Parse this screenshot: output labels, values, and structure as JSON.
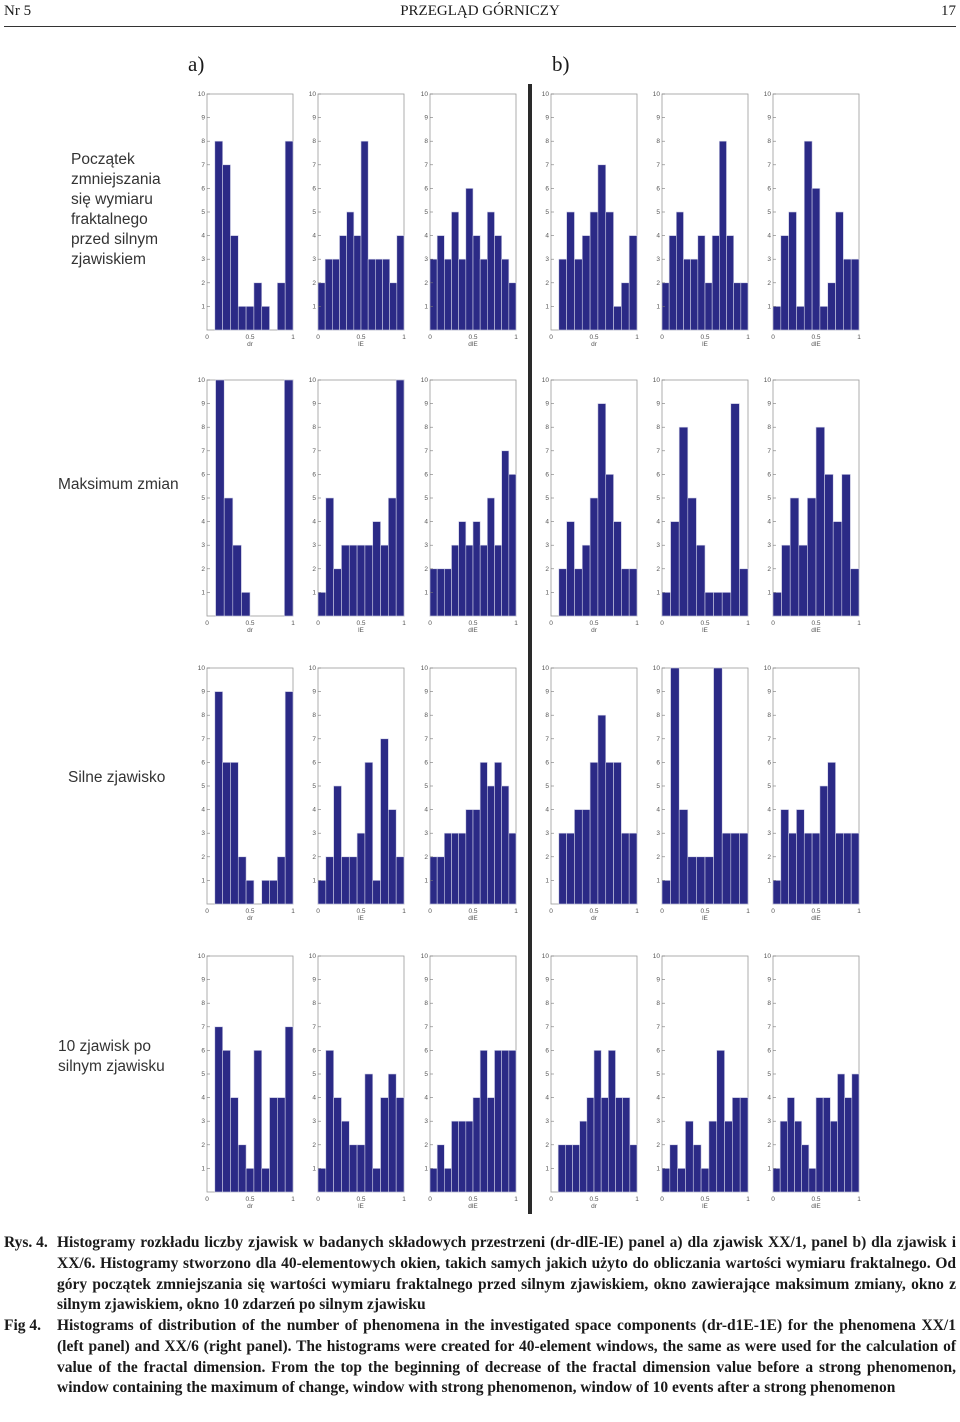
{
  "header": {
    "left": "Nr 5",
    "center": "PRZEGLĄD GÓRNICZY",
    "right": "17"
  },
  "panels": {
    "a": "a)",
    "b": "b)"
  },
  "row_labels": [
    [
      "Początek",
      "zmniejszania",
      "się wymiaru",
      "fraktalnego",
      "przed silnym",
      "zjawiskiem"
    ],
    [
      "Maksimum zmian"
    ],
    [
      "Silne zjawisko"
    ],
    [
      "10 zjawisk po",
      "silnym zjawisku"
    ]
  ],
  "chart_data": {
    "type": "bar",
    "y_ticks": [
      "1",
      "2",
      "3",
      "4",
      "5",
      "6",
      "7",
      "8",
      "9",
      "10"
    ],
    "x_ticks": [
      "0",
      "0.5",
      "1"
    ],
    "x_labels": [
      "dr",
      "lE",
      "dlE",
      "dr",
      "lE",
      "dlE"
    ],
    "bar_color": "#2b2a86",
    "ylim": [
      0,
      10
    ],
    "panels": [
      {
        "panel": "a",
        "row": 1,
        "xlabel": "dr",
        "values": [
          0,
          8,
          7,
          4,
          1,
          1,
          2,
          1,
          0,
          2,
          8
        ]
      },
      {
        "panel": "a",
        "row": 1,
        "xlabel": "lE",
        "values": [
          2,
          3,
          3,
          4,
          5,
          4,
          8,
          3,
          3,
          3,
          2,
          4
        ]
      },
      {
        "panel": "a",
        "row": 1,
        "xlabel": "dlE",
        "values": [
          3,
          4,
          3,
          5,
          3,
          6,
          4,
          3,
          5,
          4,
          3,
          2
        ]
      },
      {
        "panel": "b",
        "row": 1,
        "xlabel": "dr",
        "values": [
          0,
          3,
          5,
          3,
          4,
          5,
          7,
          5,
          1,
          2,
          4
        ]
      },
      {
        "panel": "b",
        "row": 1,
        "xlabel": "lE",
        "values": [
          2,
          4,
          5,
          3,
          3,
          4,
          2,
          4,
          8,
          4,
          2,
          2
        ]
      },
      {
        "panel": "b",
        "row": 1,
        "xlabel": "dlE",
        "values": [
          1,
          4,
          5,
          1,
          8,
          6,
          1,
          2,
          5,
          3,
          3
        ]
      },
      {
        "panel": "a",
        "row": 2,
        "xlabel": "dr",
        "values": [
          0,
          10,
          5,
          3,
          1,
          0,
          0,
          0,
          0,
          10
        ]
      },
      {
        "panel": "a",
        "row": 2,
        "xlabel": "lE",
        "values": [
          1,
          5,
          2,
          3,
          3,
          3,
          3,
          4,
          3,
          5,
          10
        ]
      },
      {
        "panel": "a",
        "row": 2,
        "xlabel": "dlE",
        "values": [
          2,
          2,
          2,
          3,
          4,
          3,
          4,
          3,
          5,
          3,
          7,
          6
        ]
      },
      {
        "panel": "b",
        "row": 2,
        "xlabel": "dr",
        "values": [
          0,
          2,
          4,
          2,
          3,
          5,
          9,
          6,
          4,
          2,
          2
        ]
      },
      {
        "panel": "b",
        "row": 2,
        "xlabel": "lE",
        "values": [
          1,
          4,
          8,
          5,
          3,
          1,
          1,
          1,
          9,
          2
        ]
      },
      {
        "panel": "b",
        "row": 2,
        "xlabel": "dlE",
        "values": [
          1,
          3,
          5,
          3,
          5,
          8,
          6,
          4,
          6,
          2
        ]
      },
      {
        "panel": "a",
        "row": 3,
        "xlabel": "dr",
        "values": [
          0,
          9,
          6,
          6,
          2,
          1,
          0,
          1,
          1,
          2,
          9
        ]
      },
      {
        "panel": "a",
        "row": 3,
        "xlabel": "lE",
        "values": [
          1,
          2,
          5,
          2,
          2,
          3,
          6,
          1,
          7,
          4,
          2
        ]
      },
      {
        "panel": "a",
        "row": 3,
        "xlabel": "dlE",
        "values": [
          2,
          2,
          3,
          3,
          3,
          4,
          4,
          6,
          5,
          6,
          5,
          3
        ]
      },
      {
        "panel": "b",
        "row": 3,
        "xlabel": "dr",
        "values": [
          0,
          3,
          3,
          4,
          4,
          6,
          8,
          6,
          6,
          3,
          3
        ]
      },
      {
        "panel": "b",
        "row": 3,
        "xlabel": "lE",
        "values": [
          1,
          10,
          4,
          2,
          2,
          2,
          10,
          3,
          3,
          3
        ]
      },
      {
        "panel": "b",
        "row": 3,
        "xlabel": "dlE",
        "values": [
          1,
          4,
          3,
          4,
          3,
          3,
          5,
          6,
          3,
          3,
          3
        ]
      },
      {
        "panel": "a",
        "row": 4,
        "xlabel": "dr",
        "values": [
          0,
          7,
          6,
          4,
          2,
          1,
          6,
          1,
          4,
          4,
          7
        ]
      },
      {
        "panel": "a",
        "row": 4,
        "xlabel": "lE",
        "values": [
          1,
          6,
          4,
          3,
          2,
          2,
          5,
          1,
          4,
          5,
          4
        ]
      },
      {
        "panel": "a",
        "row": 4,
        "xlabel": "dlE",
        "values": [
          1,
          2,
          1,
          3,
          3,
          3,
          4,
          6,
          4,
          6,
          6,
          6
        ]
      },
      {
        "panel": "b",
        "row": 4,
        "xlabel": "dr",
        "values": [
          0,
          2,
          2,
          2,
          3,
          4,
          6,
          4,
          6,
          4,
          4,
          2
        ]
      },
      {
        "panel": "b",
        "row": 4,
        "xlabel": "lE",
        "values": [
          1,
          2,
          1,
          3,
          2,
          1,
          3,
          6,
          3,
          4,
          4
        ]
      },
      {
        "panel": "b",
        "row": 4,
        "xlabel": "dlE",
        "values": [
          1,
          3,
          4,
          3,
          2,
          1,
          4,
          4,
          3,
          5,
          4,
          5
        ]
      }
    ]
  },
  "captions": {
    "pl_label": "Rys. 4.",
    "pl_text": "Histogramy rozkładu liczby zjawisk w badanych składowych przestrzeni (dr-dlE-lE) panel a) dla zjawisk XX/1, panel b) dla zjawisk i XX/6. Histogramy stworzono dla 40-elementowych okien, takich samych jakich użyto do obliczania wartości wymiaru fraktalnego. Od góry początek zmniejszania się wartości wymiaru fraktalnego przed silnym zjawiskiem, okno zawierające maksimum zmiany, okno z silnym zjawiskiem, okno 10 zdarzeń po silnym zjawisku",
    "en_label": "Fig 4.",
    "en_text": "Histograms of distribution of the number of phenomena in the investigated space components (dr-d1E-1E) for the phenomena XX/1 (left panel) and XX/6 (right panel). The histograms were created for 40-element windows, the same as were used for the calculation of value of the fractal dimension. From the top the beginning of decrease of the fractal dimension value before a strong phenomenon, window containing the maximum of change, window with strong phenomenon, window of 10 events after a strong phenomenon"
  }
}
